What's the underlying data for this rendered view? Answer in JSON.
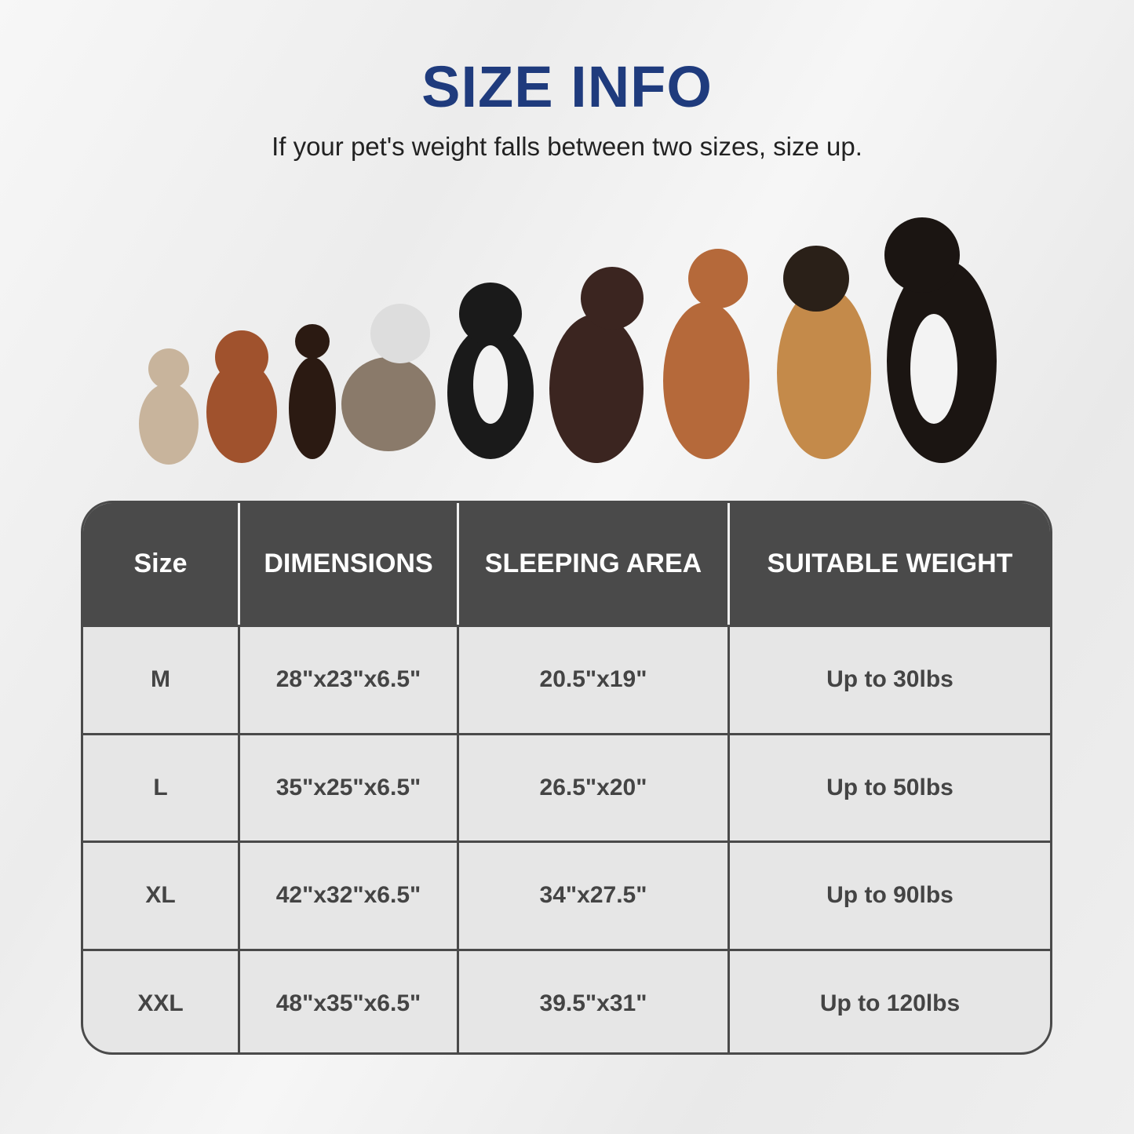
{
  "title": "SIZE INFO",
  "subtitle": "If your pet's weight falls between two sizes, size up.",
  "colors": {
    "title": "#1f3b7d",
    "header_bg": "#4a4a4a",
    "cell_bg": "#e6e6e6"
  },
  "image": "nine dogs of increasing size sitting in a row",
  "table": {
    "headers": [
      "Size",
      "DIMENSIONS",
      "SLEEPING AREA",
      "SUITABLE WEIGHT"
    ],
    "rows": [
      [
        "M",
        "28\"x23\"x6.5\"",
        "20.5\"x19\"",
        "Up to 30lbs"
      ],
      [
        "L",
        "35\"x25\"x6.5\"",
        "26.5\"x20\"",
        "Up to 50lbs"
      ],
      [
        "XL",
        "42\"x32\"x6.5\"",
        "34\"x27.5\"",
        "Up to 90lbs"
      ],
      [
        "XXL",
        "48\"x35\"x6.5\"",
        "39.5\"x31\"",
        "Up to 120lbs"
      ]
    ]
  }
}
